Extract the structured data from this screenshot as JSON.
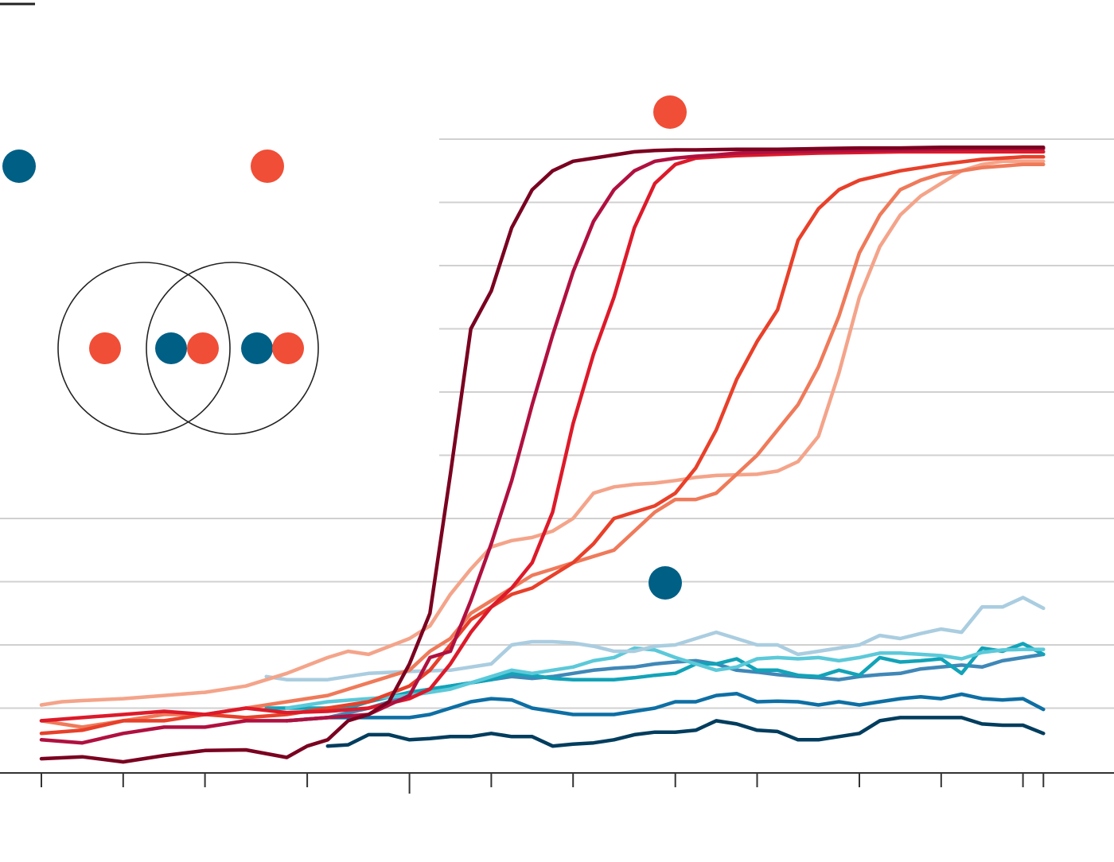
{
  "colors": {
    "blue_marker": "#005f85",
    "red_marker": "#f04e37",
    "grid": "#d0d0d0",
    "axis": "#333333"
  },
  "chart_data": {
    "type": "line",
    "title": "",
    "xlabel": "",
    "ylabel": "",
    "xlim": [
      0,
      58
    ],
    "ylim": [
      0,
      100
    ],
    "grid": true,
    "gridlines_y": [
      10,
      20,
      30,
      40,
      50,
      60,
      70,
      80,
      90,
      100
    ],
    "x_ticks": [
      2,
      6,
      10,
      15,
      20,
      24,
      28,
      33,
      37,
      42,
      46,
      50,
      51
    ],
    "markers": [
      {
        "name": "blue-circle-marker",
        "color": "#005f85",
        "shape": "filled-circle"
      },
      {
        "name": "red-circle-marker",
        "color": "#f04e37",
        "shape": "filled-circle"
      }
    ],
    "venn": {
      "circles": 2,
      "left_only": [
        "red"
      ],
      "overlap": [
        "blue",
        "red"
      ],
      "right_only": [
        "blue",
        "red"
      ]
    },
    "series": [
      {
        "color": "#7a0020",
        "x": [
          2,
          4,
          6,
          8,
          10,
          12,
          14,
          15,
          16,
          17,
          18,
          19,
          20,
          21,
          22,
          23,
          24,
          25,
          26,
          27,
          28,
          29,
          30,
          31,
          32,
          33,
          34,
          36,
          38,
          40,
          42,
          44,
          46,
          48,
          50,
          51
        ],
        "y": [
          2,
          2.3,
          1.5,
          2.5,
          3.3,
          3.4,
          2.2,
          4,
          5,
          8,
          9,
          11,
          17,
          25,
          47,
          70,
          76,
          86,
          92,
          95,
          96.5,
          97,
          97.5,
          98,
          98.2,
          98.3,
          98.3,
          98.4,
          98.4,
          98.5,
          98.6,
          98.6,
          98.7,
          98.7,
          98.7,
          98.7
        ]
      },
      {
        "color": "#b01040",
        "x": [
          2,
          4,
          6,
          8,
          10,
          12,
          14,
          16,
          18,
          20,
          21,
          22,
          23,
          24,
          25,
          26,
          27,
          28,
          29,
          30,
          31,
          32,
          33,
          34,
          35,
          36,
          38,
          40,
          42,
          44,
          46,
          48,
          50,
          51
        ],
        "y": [
          5,
          4.5,
          6,
          7,
          7,
          8,
          8,
          8.5,
          9,
          12,
          18,
          19,
          27,
          36,
          46,
          58,
          69,
          79,
          87,
          92,
          95,
          96.5,
          97,
          97.3,
          97.5,
          97.8,
          98,
          98.1,
          98.2,
          98.3,
          98.4,
          98.5,
          98.5,
          98.5
        ]
      },
      {
        "color": "#dd1a2a",
        "x": [
          2,
          4,
          6,
          8,
          10,
          12,
          14,
          16,
          18,
          20,
          21,
          22,
          23,
          24,
          25,
          26,
          27,
          28,
          29,
          30,
          31,
          32,
          33,
          34,
          35,
          36,
          38,
          40,
          42,
          44,
          46,
          48,
          50,
          51
        ],
        "y": [
          8,
          8.5,
          9,
          9.5,
          9,
          10,
          9.3,
          9.5,
          10,
          11.5,
          13,
          17,
          22,
          26,
          29,
          33,
          41,
          55,
          66,
          75,
          86,
          93,
          96,
          97,
          97.2,
          97.4,
          97.6,
          97.8,
          97.9,
          98,
          98,
          98,
          98,
          98
        ]
      },
      {
        "color": "#e8402a",
        "x": [
          2,
          4,
          6,
          8,
          10,
          12,
          14,
          16,
          18,
          20,
          21,
          22,
          23,
          24,
          25,
          26,
          27,
          28,
          29,
          30,
          31,
          32,
          33,
          34,
          35,
          36,
          37,
          38,
          39,
          40,
          41,
          42,
          44,
          46,
          48,
          50,
          51
        ],
        "y": [
          6,
          6.5,
          8,
          8,
          9,
          8.5,
          9,
          10,
          11,
          13.5,
          16,
          20,
          24,
          26,
          28,
          29,
          31,
          33,
          36,
          40,
          41,
          42,
          44,
          48,
          54,
          62,
          68,
          73,
          84,
          89,
          92,
          93.5,
          95,
          96,
          96.8,
          97.2,
          97.2
        ]
      },
      {
        "color": "#ef7a5a",
        "x": [
          2,
          4,
          6,
          8,
          10,
          12,
          14,
          16,
          18,
          20,
          21,
          22,
          23,
          24,
          25,
          26,
          27,
          28,
          29,
          30,
          31,
          32,
          33,
          34,
          35,
          36,
          37,
          38,
          39,
          40,
          41,
          42,
          43,
          44,
          45,
          46,
          47,
          48,
          50,
          51
        ],
        "y": [
          8,
          7,
          8,
          9,
          9,
          10,
          11,
          12,
          14,
          16,
          19,
          21,
          25,
          27,
          29,
          31,
          32,
          33,
          34,
          35,
          38,
          41,
          43,
          43,
          44,
          47,
          50,
          54,
          58,
          64,
          72,
          82,
          88,
          92,
          93.5,
          94.5,
          95,
          95.5,
          96,
          96
        ]
      },
      {
        "color": "#f4a48a",
        "x": [
          2,
          3,
          4,
          6,
          8,
          10,
          12,
          14,
          16,
          17,
          18,
          20,
          21,
          22,
          23,
          24,
          25,
          26,
          27,
          28,
          29,
          30,
          31,
          32,
          33,
          34,
          35,
          36,
          37,
          38,
          39,
          40,
          41,
          42,
          43,
          44,
          45,
          46,
          47,
          48,
          49,
          50,
          51
        ],
        "y": [
          10.5,
          11,
          11.2,
          11.5,
          12,
          12.5,
          13.5,
          15.5,
          18,
          19,
          18.5,
          21,
          23,
          28,
          32,
          35.5,
          36.5,
          37,
          38,
          40,
          44,
          45,
          45.4,
          45.6,
          46,
          46.5,
          46.8,
          46.9,
          47,
          47.5,
          49,
          53,
          63,
          75,
          83,
          88,
          91,
          93,
          95,
          96,
          96.5,
          96.5,
          96.5
        ]
      },
      {
        "color": "#aacde0",
        "x": [
          13,
          14,
          16,
          18,
          20,
          22,
          24,
          25,
          26,
          27,
          28,
          29,
          30,
          31,
          32,
          33,
          34,
          35,
          36,
          37,
          38,
          39,
          40,
          41,
          42,
          43,
          44,
          45,
          46,
          47,
          48,
          49,
          50,
          51
        ],
        "y": [
          15,
          14.5,
          14.5,
          15.5,
          15.8,
          16,
          17,
          20,
          20.5,
          20.5,
          20.3,
          19.8,
          19,
          19,
          19.8,
          20,
          21,
          22,
          21,
          20,
          20,
          18.5,
          19,
          19.5,
          20,
          21.5,
          21,
          21.8,
          22.5,
          22,
          26,
          26,
          27.5,
          25.8
        ]
      },
      {
        "color": "#5bc9d9",
        "x": [
          14,
          16,
          18,
          20,
          22,
          24,
          25,
          26,
          27,
          28,
          29,
          30,
          31,
          32,
          33,
          34,
          35,
          36,
          37,
          38,
          39,
          40,
          41,
          42,
          43,
          44,
          45,
          46,
          47,
          48,
          49,
          50,
          51
        ],
        "y": [
          10,
          11,
          11.5,
          12,
          13,
          15,
          16,
          15.5,
          16,
          16.5,
          17.5,
          18,
          19.5,
          19.2,
          18,
          17,
          16,
          16.5,
          17.8,
          18,
          17.8,
          18,
          17.5,
          18,
          18.7,
          18.7,
          18.5,
          18.3,
          17.8,
          18.8,
          19.2,
          19.3,
          19.3
        ]
      },
      {
        "color": "#12a3b8",
        "x": [
          13,
          15,
          17,
          18,
          20,
          22,
          24,
          25,
          26,
          27,
          28,
          29,
          30,
          31,
          32,
          33,
          34,
          35,
          36,
          37,
          38,
          39,
          40,
          41,
          42,
          43,
          44,
          45,
          46,
          47,
          48,
          49,
          50,
          51
        ],
        "y": [
          10,
          10,
          10,
          11,
          12.5,
          13.5,
          14.5,
          15.5,
          15.2,
          14.7,
          14.5,
          14.5,
          14.5,
          14.8,
          15.2,
          15.5,
          17,
          17,
          17.8,
          16,
          16,
          15.2,
          15,
          16,
          15.2,
          18,
          17.3,
          17.5,
          17.8,
          15.5,
          19.5,
          19,
          20.2,
          18.5
        ]
      },
      {
        "color": "#3f88b8",
        "x": [
          14,
          16,
          18,
          20,
          21,
          22,
          23,
          24,
          25,
          26,
          27,
          28,
          29,
          30,
          31,
          32,
          33,
          34,
          35,
          36,
          37,
          38,
          39,
          40,
          41,
          42,
          43,
          44,
          45,
          46,
          47,
          48,
          49,
          50,
          51
        ],
        "y": [
          8,
          8.5,
          10,
          12,
          13,
          13.5,
          14,
          14.5,
          15,
          14.7,
          15,
          15.5,
          16,
          16.3,
          16.5,
          17,
          17.3,
          17.5,
          17,
          16,
          15.7,
          15.3,
          15,
          14.8,
          14.5,
          15,
          15.3,
          15.5,
          16.2,
          16.5,
          16.8,
          16.5,
          17.5,
          18,
          18.5
        ]
      },
      {
        "color": "#0d6fa4",
        "x": [
          14,
          16,
          18,
          20,
          21,
          22,
          23,
          24,
          25,
          26,
          27,
          28,
          29,
          30,
          31,
          32,
          33,
          34,
          35,
          36,
          37,
          38,
          39,
          40,
          41,
          42,
          43,
          44,
          45,
          46,
          47,
          48,
          49,
          50,
          51
        ],
        "y": [
          8,
          8.5,
          8.5,
          8.5,
          9,
          10,
          11,
          11.5,
          11.3,
          10,
          9.5,
          9,
          9,
          9,
          9.5,
          10,
          11,
          11,
          12,
          12.3,
          11,
          11.1,
          11,
          10.5,
          11,
          10.5,
          11,
          11.5,
          11.8,
          11.5,
          12.2,
          11.5,
          11.3,
          11.5,
          9.8
        ]
      },
      {
        "color": "#003d5e",
        "x": [
          16,
          17,
          18,
          19,
          20,
          21,
          22,
          23,
          24,
          25,
          26,
          27,
          28,
          29,
          30,
          31,
          32,
          33,
          34,
          35,
          36,
          37,
          38,
          39,
          40,
          41,
          42,
          43,
          44,
          45,
          46,
          47,
          48,
          49,
          50,
          51
        ],
        "y": [
          4,
          4.2,
          5.8,
          5.8,
          5,
          5.2,
          5.5,
          5.5,
          6,
          5.5,
          5.5,
          4,
          4.3,
          4.5,
          5,
          5.8,
          6.2,
          6.2,
          6.5,
          8,
          7.5,
          6.5,
          6.3,
          5,
          5,
          5.5,
          6,
          8,
          8.5,
          8.5,
          8.5,
          8.5,
          7.5,
          7.3,
          7.3,
          6
        ]
      }
    ]
  }
}
